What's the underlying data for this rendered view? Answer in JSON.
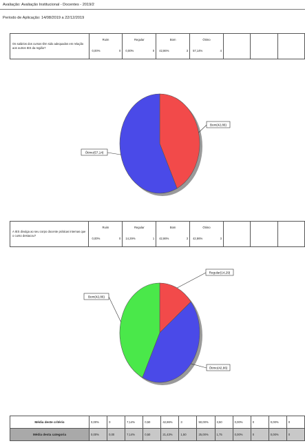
{
  "header": {
    "title": "Avaliação: Avaliação Institucional - Docentes - 2019/2",
    "period": "Período de Aplicação: 14/08/2019 a 22/12/2019"
  },
  "question1": {
    "text": "Os salários dos cursos têm sido adequados em relação aos outros IES da região?",
    "options": [
      {
        "name": "Ruim",
        "pct": "0,00%",
        "n": "0"
      },
      {
        "name": "Regular",
        "pct": "0,00%",
        "n": "0"
      },
      {
        "name": "Bom",
        "pct": "42,86%",
        "n": "3"
      },
      {
        "name": "Ótimo",
        "pct": "57,14%",
        "n": "4"
      }
    ]
  },
  "chart1": {
    "labels": [
      "Bom(42,86)",
      "Ótimo(57,14)"
    ]
  },
  "question2": {
    "text": "A IES divulga ao seu corpo docente práticas internas que o curso destacou?",
    "options": [
      {
        "name": "Ruim",
        "pct": "0,00%",
        "n": "0"
      },
      {
        "name": "Regular",
        "pct": "14,29%",
        "n": "1"
      },
      {
        "name": "Bom",
        "pct": "42,86%",
        "n": "3"
      },
      {
        "name": "Ótimo",
        "pct": "42,86%",
        "n": "3"
      }
    ]
  },
  "chart2": {
    "labels": [
      "Regular(14,29)",
      "Ótimo(42,86)",
      "Bom(42,86)"
    ]
  },
  "chart_data": [
    {
      "type": "pie",
      "title": "",
      "categories": [
        "Bom",
        "Ótimo"
      ],
      "values": [
        42.86,
        57.14
      ],
      "colors": [
        "#f24a4a",
        "#4a4ae8"
      ]
    },
    {
      "type": "pie",
      "title": "",
      "categories": [
        "Regular",
        "Bom",
        "Ótimo"
      ],
      "values": [
        14.29,
        42.86,
        42.86
      ],
      "colors": [
        "#f24a4a",
        "#4a4ae8",
        "#4ae84a"
      ]
    }
  ],
  "footer": {
    "rows": [
      {
        "label": "Média deste critério",
        "cells": [
          "0,00%",
          "0",
          "7,14%",
          "0,50",
          "42,86%",
          "3",
          "50,00%",
          "3,50",
          "0,00%",
          "0",
          "0,00%",
          "0"
        ]
      },
      {
        "label": "Média desta categoria",
        "cells": [
          "0,00%",
          "0,00",
          "7,14%",
          "0,50",
          "21,43%",
          "1,50",
          "25,00%",
          "1,75",
          "0,00%",
          "0",
          "0,00%",
          "0"
        ]
      }
    ]
  }
}
